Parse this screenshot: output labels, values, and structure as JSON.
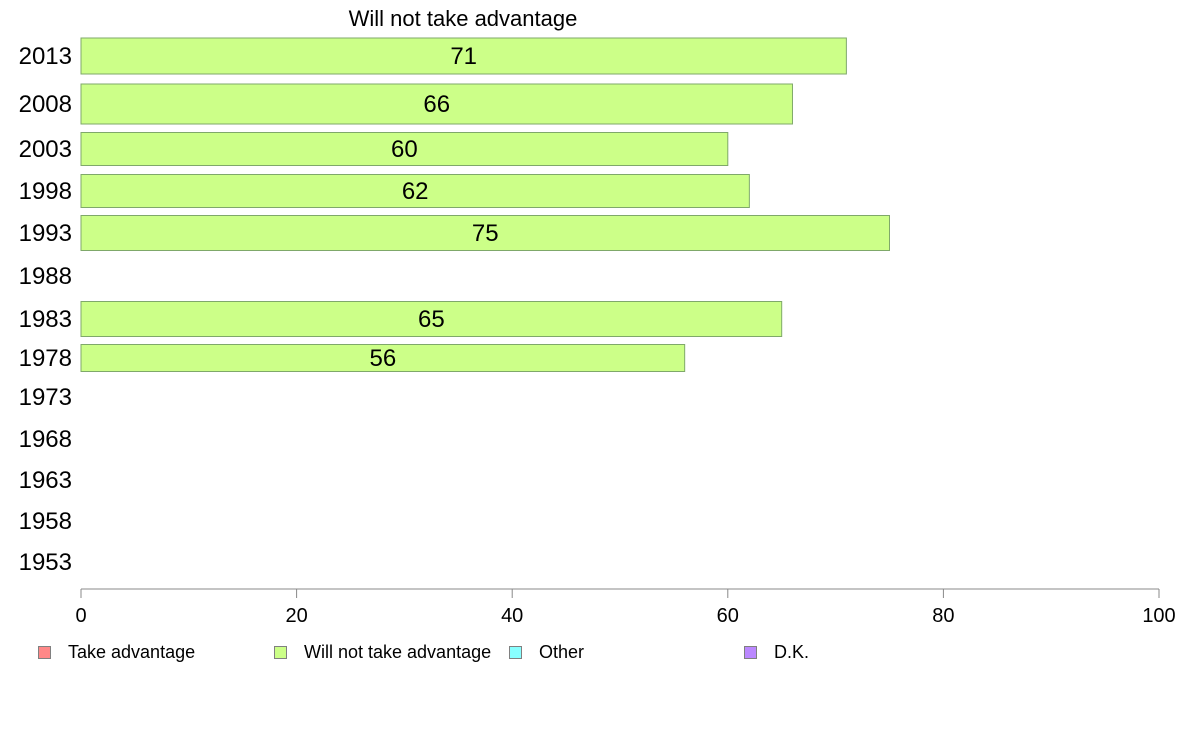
{
  "chart_data": {
    "type": "bar",
    "orientation": "horizontal",
    "title": "Will not take advantage",
    "categories": [
      "2013",
      "2008",
      "2003",
      "1998",
      "1993",
      "1988",
      "1983",
      "1978",
      "1973",
      "1968",
      "1963",
      "1958",
      "1953"
    ],
    "series": [
      {
        "name": "Will not take advantage",
        "color": "#ccff88",
        "values": [
          71,
          66,
          60,
          62,
          75,
          null,
          65,
          56,
          null,
          null,
          null,
          null,
          null
        ],
        "labels": [
          "71",
          "66",
          "60",
          "62",
          "75",
          "",
          "65",
          "56",
          "",
          "",
          "",
          "",
          ""
        ]
      }
    ],
    "xlim": [
      0,
      100
    ],
    "xticks": [
      "0",
      "20",
      "40",
      "60",
      "80",
      "100"
    ],
    "grid": false,
    "legend": {
      "placement": "bottom",
      "entries": [
        {
          "label": "Take advantage",
          "color": "#ff8888"
        },
        {
          "label": "Will not take advantage",
          "color": "#ccff88"
        },
        {
          "label": "Other",
          "color": "#88ffff"
        },
        {
          "label": "D.K.",
          "color": "#bb88ff"
        }
      ]
    }
  }
}
